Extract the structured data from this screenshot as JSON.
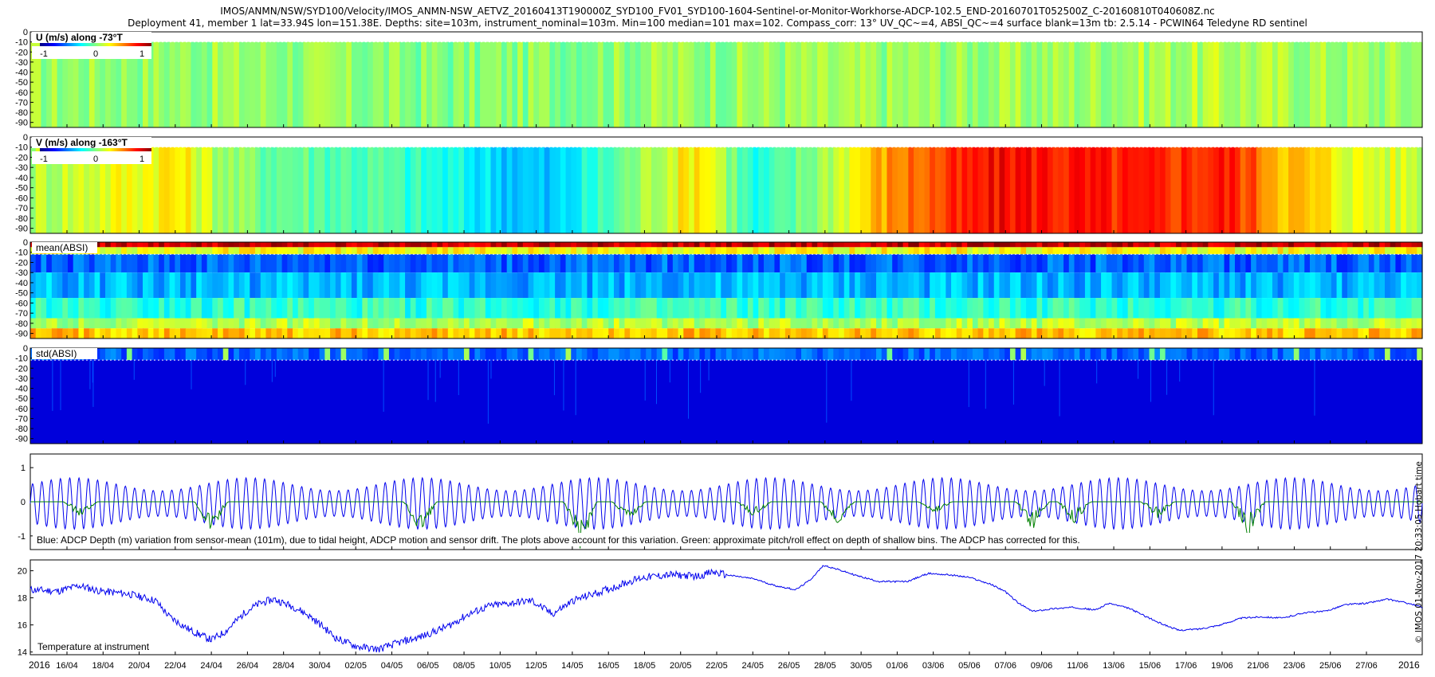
{
  "header": {
    "line1": "IMOS/ANMN/NSW/SYD100/Velocity/IMOS_ANMN-NSW_AETVZ_20160413T190000Z_SYD100_FV01_SYD100-1604-Sentinel-or-Monitor-Workhorse-ADCP-102.5_END-20160701T052500Z_C-20160810T040608Z.nc",
    "line2": "Deployment 41, member 1 lat=33.94S lon=151.38E. Depths: site=103m, instrument_nominal=103m. Min=100 median=101 max=102. Compass_corr: 13° UV_QC~=4, ABSI_QC~=4 surface blank=13m tb: 2.5.14 - PCWIN64 Teledyne RD sentinel"
  },
  "side_note": "© IMOS 01-Nov-2017 20:33:05 Hobart time",
  "colors": {
    "depth_line": "#0000ee",
    "pitch_roll_line": "#008000",
    "temperature_line": "#0000ee"
  },
  "chart_data": [
    {
      "type": "heatmap",
      "title": "U (m/s) along -73°T",
      "colorbar": {
        "ticks": [
          "-1",
          "0",
          "1"
        ],
        "range": [
          -1,
          1
        ],
        "colormap": "jet"
      },
      "y_ticks": [
        "0",
        "-10",
        "-20",
        "-30",
        "-40",
        "-50",
        "-60",
        "-70",
        "-80",
        "-90"
      ],
      "ylim": [
        -95,
        0
      ],
      "valid_depth_top": -10,
      "segments": [
        [
          0,
          0.05
        ],
        [
          0.15,
          0.05
        ],
        [
          0.3,
          0.0
        ],
        [
          0.45,
          0.05
        ],
        [
          0.55,
          0.05
        ],
        [
          0.7,
          0.05
        ],
        [
          0.85,
          0.1
        ],
        [
          1,
          0.05
        ]
      ],
      "notes": "mostly near zero (green) with weak positive/negative streaks"
    },
    {
      "type": "heatmap",
      "title": "V (m/s) along -163°T",
      "colorbar": {
        "ticks": [
          "-1",
          "0",
          "1"
        ],
        "range": [
          -1,
          1
        ],
        "colormap": "jet"
      },
      "y_ticks": [
        "0",
        "-10",
        "-20",
        "-30",
        "-40",
        "-50",
        "-60",
        "-70",
        "-80",
        "-90"
      ],
      "ylim": [
        -95,
        0
      ],
      "valid_depth_top": -10,
      "segments": [
        [
          0,
          0.1
        ],
        [
          0.1,
          0.3
        ],
        [
          0.15,
          0.0
        ],
        [
          0.25,
          -0.1
        ],
        [
          0.37,
          -0.4
        ],
        [
          0.4,
          -0.2
        ],
        [
          0.48,
          0.35
        ],
        [
          0.52,
          -0.25
        ],
        [
          0.57,
          0.1
        ],
        [
          0.62,
          0.5
        ],
        [
          0.7,
          0.75
        ],
        [
          0.8,
          0.65
        ],
        [
          0.86,
          0.7
        ],
        [
          0.9,
          0.4
        ],
        [
          0.95,
          0.2
        ],
        [
          1,
          0.15
        ]
      ]
    },
    {
      "type": "heatmap",
      "title": "mean(ABSI)",
      "y_ticks": [
        "0",
        "-10",
        "-20",
        "-30",
        "-40",
        "-50",
        "-60",
        "-70",
        "-80",
        "-90"
      ],
      "ylim": [
        -95,
        0
      ],
      "profile": "high near surface (red), low mid-column (blue), rising toward bottom (green-yellow)"
    },
    {
      "type": "heatmap",
      "title": "std(ABSI)",
      "y_ticks": [
        "0",
        "-10",
        "-20",
        "-30",
        "-40",
        "-50",
        "-60",
        "-70",
        "-80",
        "-90"
      ],
      "ylim": [
        -95,
        0
      ],
      "profile": "uniformly low (dark blue) with higher values in the top bins"
    },
    {
      "type": "line",
      "y_ticks": [
        "1",
        "0",
        "-1"
      ],
      "ylim": [
        -1.4,
        1.4
      ],
      "annotation": "Blue: ADCP Depth (m) variation from sensor-mean (101m), due to tidal height, ADCP motion and sensor drift. The plots above account for this variation. Green: approximate pitch/roll effect on depth of shallow bins. The ADCP has corrected for this.",
      "series": [
        {
          "name": "ADCP Depth (m) variation",
          "color": "#0000ee",
          "amplitude": 0.75,
          "cycles": 150
        },
        {
          "name": "pitch/roll effect",
          "color": "#008000",
          "dips": [
            [
              0.036,
              -0.4
            ],
            [
              0.13,
              -0.8
            ],
            [
              0.28,
              -0.85
            ],
            [
              0.395,
              -1.25
            ],
            [
              0.43,
              -0.5
            ],
            [
              0.52,
              -0.4
            ],
            [
              0.58,
              -0.6
            ],
            [
              0.65,
              -0.3
            ],
            [
              0.72,
              -0.7
            ],
            [
              0.75,
              -0.55
            ],
            [
              0.81,
              -0.4
            ],
            [
              0.875,
              -0.85
            ]
          ]
        }
      ]
    },
    {
      "type": "line",
      "title": "Temperature at instrument",
      "y_ticks": [
        "20",
        "18",
        "16",
        "14"
      ],
      "ylim": [
        13.8,
        20.8
      ],
      "x_tick_labels": [
        "16/04",
        "18/04",
        "20/04",
        "22/04",
        "24/04",
        "26/04",
        "28/04",
        "30/04",
        "02/05",
        "04/05",
        "06/05",
        "08/05",
        "10/05",
        "12/05",
        "14/05",
        "16/05",
        "18/05",
        "20/05",
        "22/05",
        "24/05",
        "26/05",
        "28/05",
        "30/05",
        "01/06",
        "03/06",
        "05/06",
        "07/06",
        "09/06",
        "11/06",
        "13/06",
        "15/06",
        "17/06",
        "19/06",
        "21/06",
        "23/06",
        "25/06",
        "27/06"
      ],
      "year_left": "2016",
      "year_right": "2016",
      "series": [
        {
          "name": "Temperature",
          "color": "#0000ee",
          "points": [
            [
              0,
              18.6
            ],
            [
              0.02,
              18.5
            ],
            [
              0.035,
              18.9
            ],
            [
              0.05,
              18.5
            ],
            [
              0.07,
              18.3
            ],
            [
              0.09,
              17.8
            ],
            [
              0.1,
              16.6
            ],
            [
              0.115,
              15.6
            ],
            [
              0.13,
              14.9
            ],
            [
              0.14,
              15.5
            ],
            [
              0.155,
              17.0
            ],
            [
              0.165,
              17.6
            ],
            [
              0.175,
              17.9
            ],
            [
              0.19,
              17.3
            ],
            [
              0.2,
              16.7
            ],
            [
              0.21,
              15.9
            ],
            [
              0.22,
              15.0
            ],
            [
              0.235,
              14.4
            ],
            [
              0.25,
              14.2
            ],
            [
              0.265,
              14.7
            ],
            [
              0.28,
              15.1
            ],
            [
              0.3,
              15.9
            ],
            [
              0.315,
              16.8
            ],
            [
              0.33,
              17.4
            ],
            [
              0.345,
              17.6
            ],
            [
              0.36,
              17.8
            ],
            [
              0.375,
              16.8
            ],
            [
              0.39,
              17.8
            ],
            [
              0.405,
              18.3
            ],
            [
              0.42,
              18.8
            ],
            [
              0.43,
              19.2
            ],
            [
              0.44,
              19.5
            ],
            [
              0.46,
              19.7
            ],
            [
              0.48,
              19.6
            ],
            [
              0.49,
              19.9
            ],
            [
              0.5,
              19.7
            ],
            [
              0.52,
              19.4
            ],
            [
              0.535,
              18.9
            ],
            [
              0.55,
              18.6
            ],
            [
              0.56,
              19.3
            ],
            [
              0.57,
              20.4
            ],
            [
              0.58,
              20.1
            ],
            [
              0.595,
              19.6
            ],
            [
              0.61,
              19.2
            ],
            [
              0.63,
              19.2
            ],
            [
              0.645,
              19.8
            ],
            [
              0.66,
              19.7
            ],
            [
              0.675,
              19.5
            ],
            [
              0.69,
              19.0
            ],
            [
              0.7,
              18.5
            ],
            [
              0.71,
              17.6
            ],
            [
              0.72,
              17.0
            ],
            [
              0.735,
              17.2
            ],
            [
              0.75,
              17.3
            ],
            [
              0.765,
              17.1
            ],
            [
              0.775,
              17.6
            ],
            [
              0.79,
              17.2
            ],
            [
              0.8,
              16.7
            ],
            [
              0.81,
              16.2
            ],
            [
              0.825,
              15.6
            ],
            [
              0.84,
              15.7
            ],
            [
              0.855,
              16.0
            ],
            [
              0.87,
              16.5
            ],
            [
              0.885,
              16.6
            ],
            [
              0.9,
              16.5
            ],
            [
              0.915,
              16.9
            ],
            [
              0.93,
              17.0
            ],
            [
              0.945,
              17.5
            ],
            [
              0.96,
              17.6
            ],
            [
              0.975,
              17.9
            ],
            [
              0.99,
              17.6
            ],
            [
              1,
              17.3
            ]
          ]
        }
      ]
    }
  ]
}
